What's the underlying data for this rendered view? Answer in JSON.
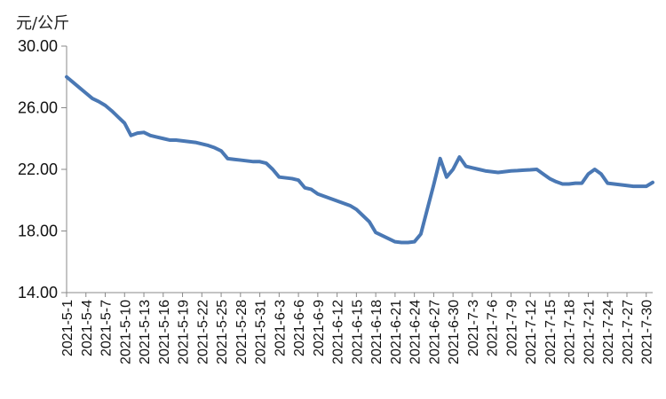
{
  "chart_data": {
    "type": "line",
    "unit_label": "元/公斤",
    "ylim": [
      14,
      30
    ],
    "yticks": [
      14,
      18,
      22,
      26,
      30
    ],
    "ytick_labels": [
      "14.00",
      "18.00",
      "22.00",
      "26.00",
      "30.00"
    ],
    "x_tick_labels": [
      "2021-5-1",
      "2021-5-4",
      "2021-5-7",
      "2021-5-10",
      "2021-5-13",
      "2021-5-16",
      "2021-5-19",
      "2021-5-22",
      "2021-5-25",
      "2021-5-28",
      "2021-5-31",
      "2021-6-3",
      "2021-6-6",
      "2021-6-9",
      "2021-6-12",
      "2021-6-15",
      "2021-6-18",
      "2021-6-21",
      "2021-6-24",
      "2021-6-27",
      "2021-6-30",
      "2021-7-3",
      "2021-7-6",
      "2021-7-9",
      "2021-7-12",
      "2021-7-15",
      "2021-7-18",
      "2021-7-21",
      "2021-7-24",
      "2021-7-27",
      "2021-7-30"
    ],
    "line_color": "#4a78b4",
    "grid": false,
    "series": [
      {
        "x": [
          "2021-5-1",
          "2021-5-2",
          "2021-5-3",
          "2021-5-4",
          "2021-5-5",
          "2021-5-6",
          "2021-5-7",
          "2021-5-8",
          "2021-5-9",
          "2021-5-10",
          "2021-5-11",
          "2021-5-12",
          "2021-5-13",
          "2021-5-14",
          "2021-5-15",
          "2021-5-16",
          "2021-5-17",
          "2021-5-18",
          "2021-5-19",
          "2021-5-20",
          "2021-5-21",
          "2021-5-22",
          "2021-5-23",
          "2021-5-24",
          "2021-5-25",
          "2021-5-26",
          "2021-5-27",
          "2021-5-28",
          "2021-5-29",
          "2021-5-30",
          "2021-5-31",
          "2021-6-1",
          "2021-6-2",
          "2021-6-3",
          "2021-6-4",
          "2021-6-5",
          "2021-6-6",
          "2021-6-7",
          "2021-6-8",
          "2021-6-9",
          "2021-6-10",
          "2021-6-11",
          "2021-6-12",
          "2021-6-13",
          "2021-6-14",
          "2021-6-15",
          "2021-6-16",
          "2021-6-17",
          "2021-6-18",
          "2021-6-19",
          "2021-6-20",
          "2021-6-21",
          "2021-6-22",
          "2021-6-23",
          "2021-6-24",
          "2021-6-25",
          "2021-6-26",
          "2021-6-27",
          "2021-6-28",
          "2021-6-29",
          "2021-6-30",
          "2021-7-1",
          "2021-7-2",
          "2021-7-3",
          "2021-7-4",
          "2021-7-5",
          "2021-7-6",
          "2021-7-7",
          "2021-7-8",
          "2021-7-9",
          "2021-7-10",
          "2021-7-11",
          "2021-7-12",
          "2021-7-13",
          "2021-7-14",
          "2021-7-15",
          "2021-7-16",
          "2021-7-17",
          "2021-7-18",
          "2021-7-19",
          "2021-7-20",
          "2021-7-21",
          "2021-7-22",
          "2021-7-23",
          "2021-7-24",
          "2021-7-25",
          "2021-7-26",
          "2021-7-27",
          "2021-7-28",
          "2021-7-29",
          "2021-7-30",
          "2021-7-31"
        ],
        "values": [
          28.0,
          27.65,
          27.3,
          26.95,
          26.6,
          26.4,
          26.15,
          25.8,
          25.4,
          25.0,
          24.2,
          24.35,
          24.4,
          24.2,
          24.1,
          24.0,
          23.9,
          23.9,
          23.85,
          23.8,
          23.75,
          23.65,
          23.55,
          23.4,
          23.2,
          22.7,
          22.65,
          22.6,
          22.55,
          22.5,
          22.5,
          22.4,
          22.0,
          21.5,
          21.45,
          21.4,
          21.3,
          20.8,
          20.7,
          20.4,
          20.25,
          20.1,
          19.95,
          19.8,
          19.65,
          19.4,
          19.0,
          18.6,
          17.9,
          17.7,
          17.5,
          17.3,
          17.25,
          17.25,
          17.3,
          17.8,
          19.4,
          21.0,
          22.7,
          21.5,
          22.0,
          22.8,
          22.2,
          22.1,
          22.0,
          21.9,
          21.85,
          21.8,
          21.85,
          21.9,
          21.92,
          21.95,
          21.97,
          22.0,
          21.7,
          21.4,
          21.2,
          21.05,
          21.05,
          21.1,
          21.1,
          21.7,
          22.0,
          21.7,
          21.1,
          21.05,
          21.0,
          20.95,
          20.9,
          20.9,
          20.9,
          21.15
        ]
      }
    ]
  }
}
